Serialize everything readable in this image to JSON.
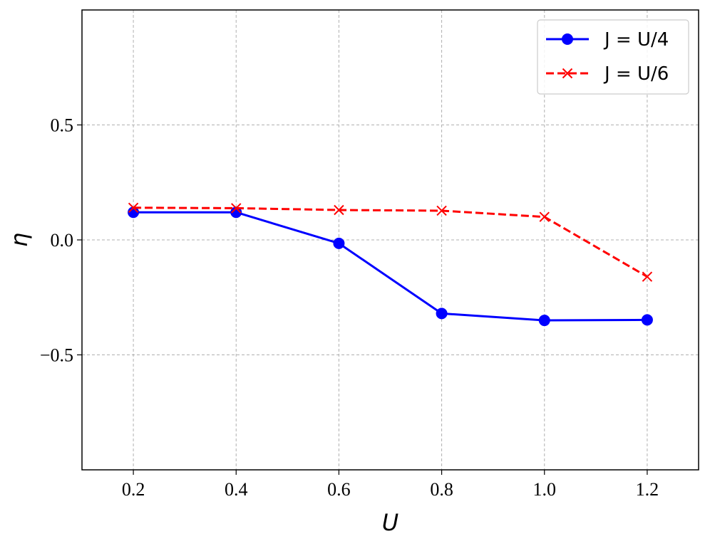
{
  "chart_data": {
    "type": "line",
    "xlabel": "U",
    "ylabel": "η",
    "xlim": [
      0.1,
      1.3
    ],
    "ylim": [
      -1.0,
      1.0
    ],
    "xticks": [
      "0.2",
      "0.4",
      "0.6",
      "0.8",
      "1.0",
      "1.2"
    ],
    "xtick_values": [
      0.2,
      0.4,
      0.6,
      0.8,
      1.0,
      1.2
    ],
    "yticks": [
      "0.5",
      "0.0",
      "−0.5"
    ],
    "ytick_values": [
      0.5,
      0.0,
      -0.5
    ],
    "grid": true,
    "legend_position": "top-right",
    "x": [
      0.2,
      0.4,
      0.6,
      0.8,
      1.0,
      1.2
    ],
    "series": [
      {
        "name": "J = U/4",
        "values": [
          0.12,
          0.12,
          -0.015,
          -0.32,
          -0.35,
          -0.348
        ],
        "color": "#0000ff",
        "marker": "circle",
        "linestyle": "solid"
      },
      {
        "name": "J = U/6",
        "values": [
          0.14,
          0.138,
          0.13,
          0.127,
          0.1,
          -0.16
        ],
        "color": "#ff0000",
        "marker": "x",
        "linestyle": "dashed"
      }
    ]
  }
}
